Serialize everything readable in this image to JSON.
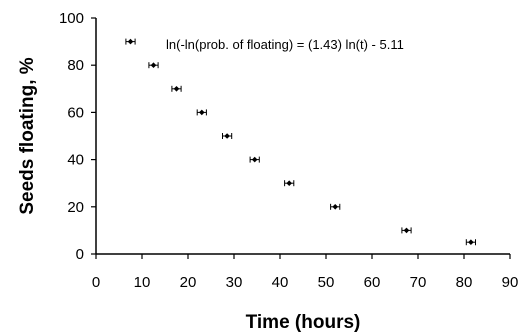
{
  "chart_data": {
    "type": "scatter",
    "title": "",
    "xlabel": "Time (hours)",
    "ylabel": "Seeds floating, %",
    "xlim": [
      0,
      90
    ],
    "ylim": [
      0,
      100
    ],
    "x_ticks": [
      0,
      10,
      20,
      30,
      40,
      50,
      60,
      70,
      80,
      90
    ],
    "y_ticks": [
      0,
      20,
      40,
      60,
      80,
      100
    ],
    "grid": false,
    "annotation": "ln(-ln(prob. of floating) = (1.43) ln(t) - 5.11",
    "series": [
      {
        "points": [
          {
            "x": 7.5,
            "y": 90,
            "xerr": 1.0
          },
          {
            "x": 12.5,
            "y": 80,
            "xerr": 1.0
          },
          {
            "x": 17.5,
            "y": 70,
            "xerr": 1.0
          },
          {
            "x": 23.0,
            "y": 60,
            "xerr": 1.0
          },
          {
            "x": 28.5,
            "y": 50,
            "xerr": 1.0
          },
          {
            "x": 34.5,
            "y": 40,
            "xerr": 1.0
          },
          {
            "x": 42.0,
            "y": 30,
            "xerr": 1.0
          },
          {
            "x": 52.0,
            "y": 20,
            "xerr": 1.0
          },
          {
            "x": 67.5,
            "y": 10,
            "xerr": 1.0
          },
          {
            "x": 81.5,
            "y": 5,
            "xerr": 1.0
          }
        ]
      }
    ]
  }
}
